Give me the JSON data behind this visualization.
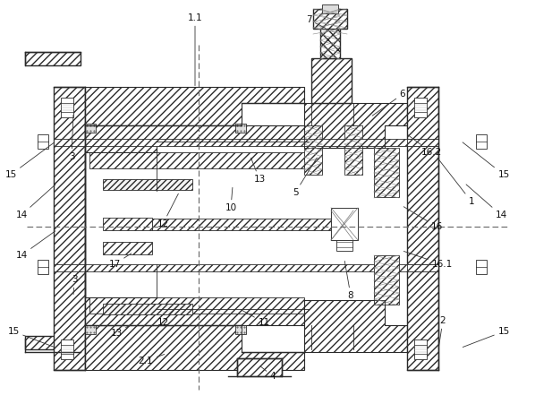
{
  "figsize": [
    5.98,
    4.51
  ],
  "dpi": 100,
  "lc": "#2a2a2a",
  "lc2": "#555555",
  "bg": "white"
}
